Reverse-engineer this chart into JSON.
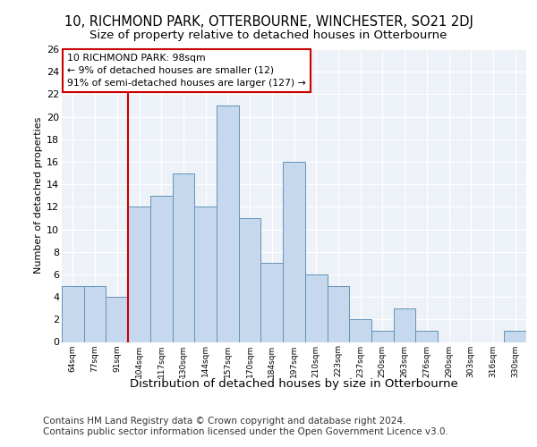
{
  "title1": "10, RICHMOND PARK, OTTERBOURNE, WINCHESTER, SO21 2DJ",
  "title2": "Size of property relative to detached houses in Otterbourne",
  "xlabel": "Distribution of detached houses by size in Otterbourne",
  "ylabel": "Number of detached properties",
  "categories": [
    "64sqm",
    "77sqm",
    "91sqm",
    "104sqm",
    "117sqm",
    "130sqm",
    "144sqm",
    "157sqm",
    "170sqm",
    "184sqm",
    "197sqm",
    "210sqm",
    "223sqm",
    "237sqm",
    "250sqm",
    "263sqm",
    "276sqm",
    "290sqm",
    "303sqm",
    "316sqm",
    "330sqm"
  ],
  "values": [
    5,
    5,
    4,
    12,
    13,
    15,
    12,
    21,
    11,
    7,
    16,
    6,
    5,
    2,
    1,
    3,
    1,
    0,
    0,
    0,
    1
  ],
  "bar_color": "#c5d8ed",
  "bar_edge_color": "#6494b7",
  "vline_x": 2.5,
  "vline_color": "#cc0000",
  "annotation_text": "10 RICHMOND PARK: 98sqm\n← 9% of detached houses are smaller (12)\n91% of semi-detached houses are larger (127) →",
  "annotation_box_color": "#ffffff",
  "annotation_box_edge": "#cc0000",
  "ylim": [
    0,
    26
  ],
  "yticks": [
    0,
    2,
    4,
    6,
    8,
    10,
    12,
    14,
    16,
    18,
    20,
    22,
    24,
    26
  ],
  "background_color": "#edf1f8",
  "footer": "Contains HM Land Registry data © Crown copyright and database right 2024.\nContains public sector information licensed under the Open Government Licence v3.0.",
  "title1_fontsize": 10.5,
  "title2_fontsize": 9.5,
  "xlabel_fontsize": 9.5,
  "ylabel_fontsize": 8,
  "footer_fontsize": 7.5
}
